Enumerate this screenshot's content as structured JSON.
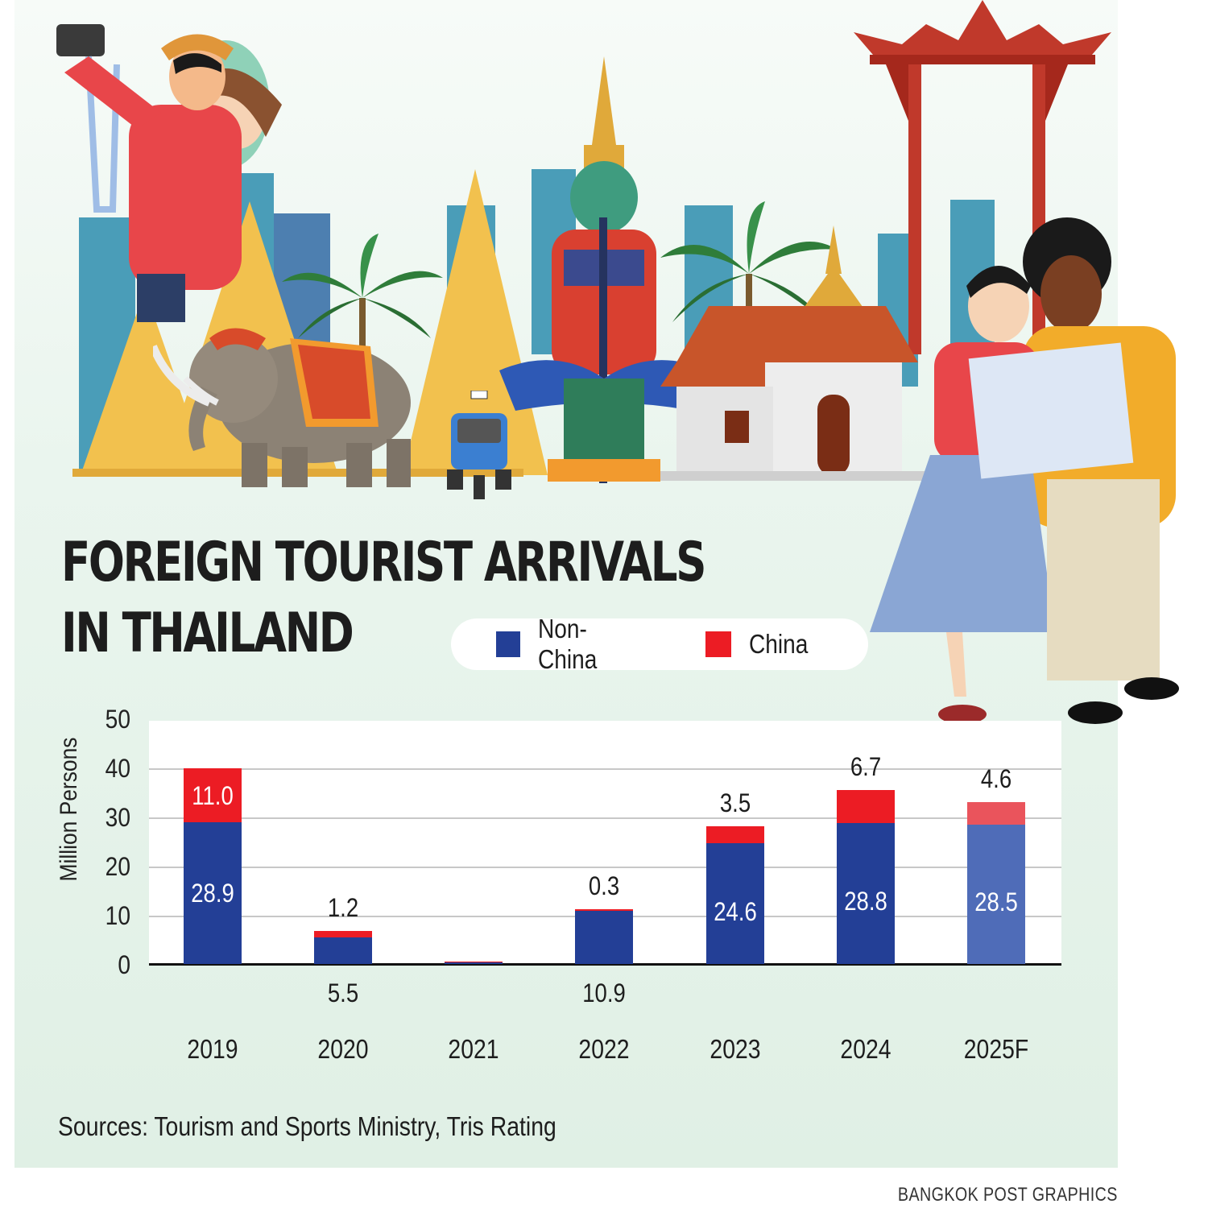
{
  "title": {
    "line1": "FOREIGN TOURIST ARRIVALS",
    "line2": "IN THAILAND"
  },
  "legend": [
    {
      "label": "Non-China",
      "color": "#233f96"
    },
    {
      "label": "China",
      "color": "#ec1c24"
    }
  ],
  "axis": {
    "ylabel": "Million Persons",
    "yticks": [
      "50",
      "40",
      "30",
      "20",
      "10",
      "0"
    ]
  },
  "source": "Sources: Tourism and Sports Ministry, Tris Rating",
  "credit": "BANGKOK POST GRAPHICS",
  "colors": {
    "non_china": "#233f96",
    "china": "#ec1c24",
    "non_china_forecast": "#4f6cb8",
    "china_forecast": "#ea545c",
    "background": "#e0f0e5"
  },
  "chart_data": {
    "type": "bar",
    "stacked": true,
    "title": "FOREIGN TOURIST ARRIVALS IN THAILAND",
    "xlabel": "",
    "ylabel": "Million Persons",
    "ylim": [
      0,
      50
    ],
    "yticks": [
      0,
      10,
      20,
      30,
      40,
      50
    ],
    "grid": true,
    "legend_position": "top (beside title)",
    "categories": [
      "2019",
      "2020",
      "2021",
      "2022",
      "2023",
      "2024",
      "2025F"
    ],
    "series": [
      {
        "name": "Non-China",
        "color": "#233f96",
        "values": [
          28.9,
          5.5,
          0.4,
          10.9,
          24.6,
          28.8,
          28.5
        ]
      },
      {
        "name": "China",
        "color": "#ec1c24",
        "values": [
          11.0,
          1.2,
          0.01,
          0.3,
          3.5,
          6.7,
          4.6
        ]
      }
    ],
    "data_labels": {
      "Non-China": [
        "28.9",
        "5.5",
        "",
        "10.9",
        "24.6",
        "28.8",
        "28.5"
      ],
      "China": [
        "11.0",
        "1.2",
        "",
        "0.3",
        "3.5",
        "6.7",
        "4.6"
      ]
    },
    "annotations": [
      "2025F is a forecast (lighter shading)"
    ]
  },
  "bars": [
    {
      "year": "2019",
      "nc": 28.9,
      "c": 11.0,
      "nc_label": "28.9",
      "c_label": "11.0",
      "nc_pos": "in",
      "c_pos": "in",
      "forecast": false
    },
    {
      "year": "2020",
      "nc": 5.5,
      "c": 1.2,
      "nc_label": "5.5",
      "c_label": "1.2",
      "nc_pos": "below",
      "c_pos": "above",
      "forecast": false
    },
    {
      "year": "2021",
      "nc": 0.4,
      "c": 0.01,
      "nc_label": "",
      "c_label": "",
      "nc_pos": "none",
      "c_pos": "none",
      "forecast": false
    },
    {
      "year": "2022",
      "nc": 10.9,
      "c": 0.3,
      "nc_label": "10.9",
      "c_label": "0.3",
      "nc_pos": "below",
      "c_pos": "above",
      "forecast": false
    },
    {
      "year": "2023",
      "nc": 24.6,
      "c": 3.5,
      "nc_label": "24.6",
      "c_label": "3.5",
      "nc_pos": "in",
      "c_pos": "above",
      "forecast": false
    },
    {
      "year": "2024",
      "nc": 28.8,
      "c": 6.7,
      "nc_label": "28.8",
      "c_label": "6.7",
      "nc_pos": "in",
      "c_pos": "above",
      "forecast": false
    },
    {
      "year": "2025F",
      "nc": 28.5,
      "c": 4.6,
      "nc_label": "28.5",
      "c_label": "4.6",
      "nc_pos": "in",
      "c_pos": "above",
      "forecast": true
    }
  ]
}
